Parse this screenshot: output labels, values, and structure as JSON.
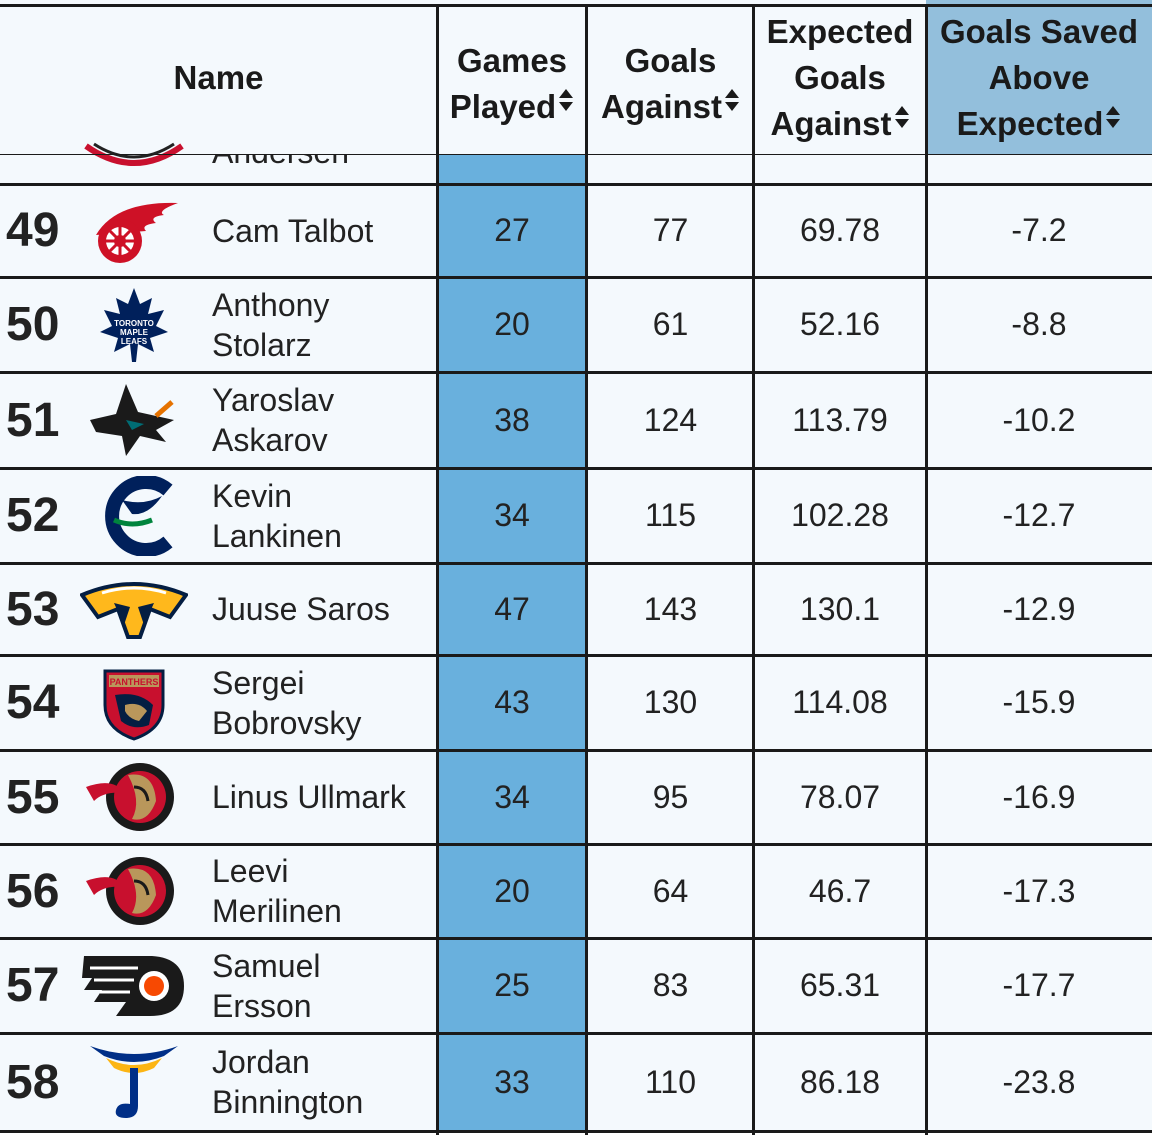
{
  "header": {
    "name": "Name",
    "games_played": [
      "Games",
      "Played"
    ],
    "goals_against": [
      "Goals",
      "Against"
    ],
    "expected_goals_against": [
      "Expected",
      "Goals",
      "Against"
    ],
    "gsax": [
      "Goals Saved",
      "Above",
      "Expected"
    ],
    "sort_icon": "sort-arrows-icon"
  },
  "colors": {
    "sorted_column": "#69b0dd",
    "sorted_header": "#93bfdc",
    "row_bg": "#f4f9fd",
    "border": "#1a1a1a"
  },
  "partial_row": {
    "name": "Andersen",
    "logo": "hurricanes-logo"
  },
  "rows": [
    {
      "rank": "49",
      "logo": "red-wings-logo",
      "name": [
        "Cam Talbot"
      ],
      "gp": "27",
      "ga": "77",
      "xga": "69.78",
      "gsax": "-7.2"
    },
    {
      "rank": "50",
      "logo": "maple-leafs-logo",
      "name": [
        "Anthony",
        "Stolarz"
      ],
      "gp": "20",
      "ga": "61",
      "xga": "52.16",
      "gsax": "-8.8"
    },
    {
      "rank": "51",
      "logo": "sharks-logo",
      "name": [
        "Yaroslav",
        "Askarov"
      ],
      "gp": "38",
      "ga": "124",
      "xga": "113.79",
      "gsax": "-10.2"
    },
    {
      "rank": "52",
      "logo": "canucks-logo",
      "name": [
        "Kevin",
        "Lankinen"
      ],
      "gp": "34",
      "ga": "115",
      "xga": "102.28",
      "gsax": "-12.7"
    },
    {
      "rank": "53",
      "logo": "predators-logo",
      "name": [
        "Juuse Saros"
      ],
      "gp": "47",
      "ga": "143",
      "xga": "130.1",
      "gsax": "-12.9"
    },
    {
      "rank": "54",
      "logo": "panthers-logo",
      "name": [
        "Sergei",
        "Bobrovsky"
      ],
      "gp": "43",
      "ga": "130",
      "xga": "114.08",
      "gsax": "-15.9"
    },
    {
      "rank": "55",
      "logo": "senators-logo",
      "name": [
        "Linus Ullmark"
      ],
      "gp": "34",
      "ga": "95",
      "xga": "78.07",
      "gsax": "-16.9"
    },
    {
      "rank": "56",
      "logo": "senators-logo",
      "name": [
        "Leevi",
        "Merilinen"
      ],
      "gp": "20",
      "ga": "64",
      "xga": "46.7",
      "gsax": "-17.3"
    },
    {
      "rank": "57",
      "logo": "flyers-logo",
      "name": [
        "Samuel",
        "Ersson"
      ],
      "gp": "25",
      "ga": "83",
      "xga": "65.31",
      "gsax": "-17.7"
    },
    {
      "rank": "58",
      "logo": "blues-logo",
      "name": [
        "Jordan",
        "Binnington"
      ],
      "gp": "33",
      "ga": "110",
      "xga": "86.18",
      "gsax": "-23.8"
    }
  ]
}
